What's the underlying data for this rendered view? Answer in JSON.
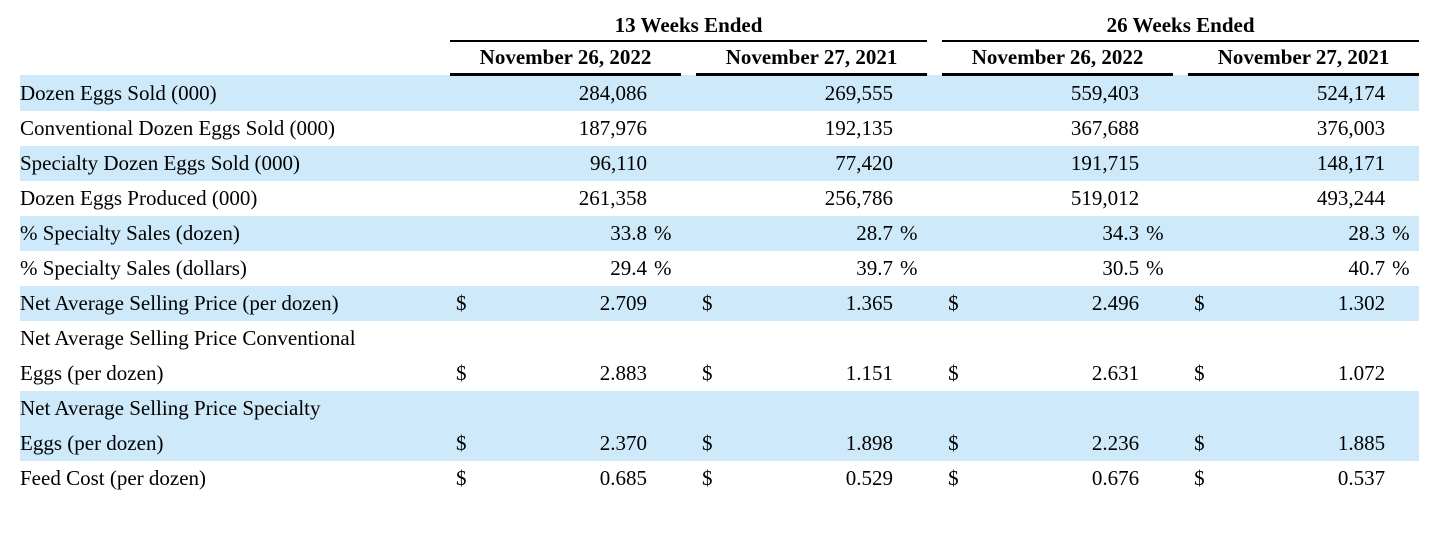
{
  "table": {
    "colors": {
      "row_shade": "#cee9f9",
      "rule": "#000000",
      "text": "#000000"
    },
    "groups": [
      {
        "label": "13 Weeks Ended",
        "columns": [
          "November 26, 2022",
          "November 27, 2021"
        ]
      },
      {
        "label": "26 Weeks Ended",
        "columns": [
          "November 26, 2022",
          "November 27, 2021"
        ]
      }
    ],
    "rows": [
      {
        "label": "Dozen Eggs Sold (000)",
        "prefix": "",
        "suffix": "",
        "shaded": true,
        "values": [
          "284,086",
          "269,555",
          "559,403",
          "524,174"
        ]
      },
      {
        "label": "Conventional Dozen Eggs Sold (000)",
        "prefix": "",
        "suffix": "",
        "shaded": false,
        "values": [
          "187,976",
          "192,135",
          "367,688",
          "376,003"
        ]
      },
      {
        "label": "Specialty Dozen Eggs Sold (000)",
        "prefix": "",
        "suffix": "",
        "shaded": true,
        "values": [
          "96,110",
          "77,420",
          "191,715",
          "148,171"
        ]
      },
      {
        "label": "Dozen Eggs Produced (000)",
        "prefix": "",
        "suffix": "",
        "shaded": false,
        "values": [
          "261,358",
          "256,786",
          "519,012",
          "493,244"
        ]
      },
      {
        "label": "% Specialty Sales (dozen)",
        "prefix": "",
        "suffix": "%",
        "shaded": true,
        "values": [
          "33.8",
          "28.7",
          "34.3",
          "28.3"
        ]
      },
      {
        "label": "% Specialty Sales (dollars)",
        "prefix": "",
        "suffix": "%",
        "shaded": false,
        "values": [
          "29.4",
          "39.7",
          "30.5",
          "40.7"
        ]
      },
      {
        "label": "Net Average Selling Price (per dozen)",
        "prefix": "$",
        "suffix": "",
        "shaded": true,
        "values": [
          "2.709",
          "1.365",
          "2.496",
          "1.302"
        ]
      },
      {
        "label": "Net Average Selling Price Conventional\nEggs (per dozen)",
        "prefix": "$",
        "suffix": "",
        "shaded": false,
        "values": [
          "2.883",
          "1.151",
          "2.631",
          "1.072"
        ]
      },
      {
        "label": "Net Average Selling Price Specialty\nEggs (per dozen)",
        "prefix": "$",
        "suffix": "",
        "shaded": true,
        "values": [
          "2.370",
          "1.898",
          "2.236",
          "1.885"
        ]
      },
      {
        "label": "Feed Cost (per dozen)",
        "prefix": "$",
        "suffix": "",
        "shaded": false,
        "values": [
          "0.685",
          "0.529",
          "0.676",
          "0.537"
        ]
      }
    ]
  }
}
